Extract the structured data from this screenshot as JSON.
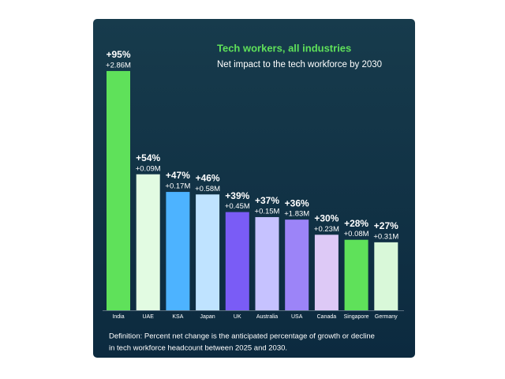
{
  "chart_data": {
    "type": "bar",
    "title": "Tech workers, all industries",
    "subtitle": "Net impact to the tech workforce by 2030",
    "categories": [
      "India",
      "UAE",
      "KSA",
      "Japan",
      "UK",
      "Australia",
      "USA",
      "Canada",
      "Singapore",
      "Germany"
    ],
    "values": [
      95,
      54,
      47,
      46,
      39,
      37,
      36,
      30,
      28,
      27
    ],
    "value_labels": [
      "+95%",
      "+54%",
      "+47%",
      "+46%",
      "+39%",
      "+37%",
      "+36%",
      "+30%",
      "+28%",
      "+27%"
    ],
    "secondary_values": [
      2.86,
      0.09,
      0.17,
      0.58,
      0.45,
      0.15,
      1.83,
      0.23,
      0.08,
      0.31
    ],
    "secondary_value_labels": [
      "+2.86M",
      "+0.09M",
      "+0.17M",
      "+0.58M",
      "+0.45M",
      "+0.15M",
      "+1.83M",
      "+0.23M",
      "+0.08M",
      "+0.31M"
    ],
    "colors": [
      "#5fe15a",
      "#e2fbe2",
      "#4db3ff",
      "#bfe3ff",
      "#7a5cf6",
      "#c6c2ff",
      "#9c84f8",
      "#ddc9f6",
      "#5fe15a",
      "#d9f8d9"
    ],
    "footnote": [
      "Definition: Percent net change is the anticipated percentage of growth or decline",
      "in tech workforce headcount between 2025 and 2030."
    ]
  }
}
